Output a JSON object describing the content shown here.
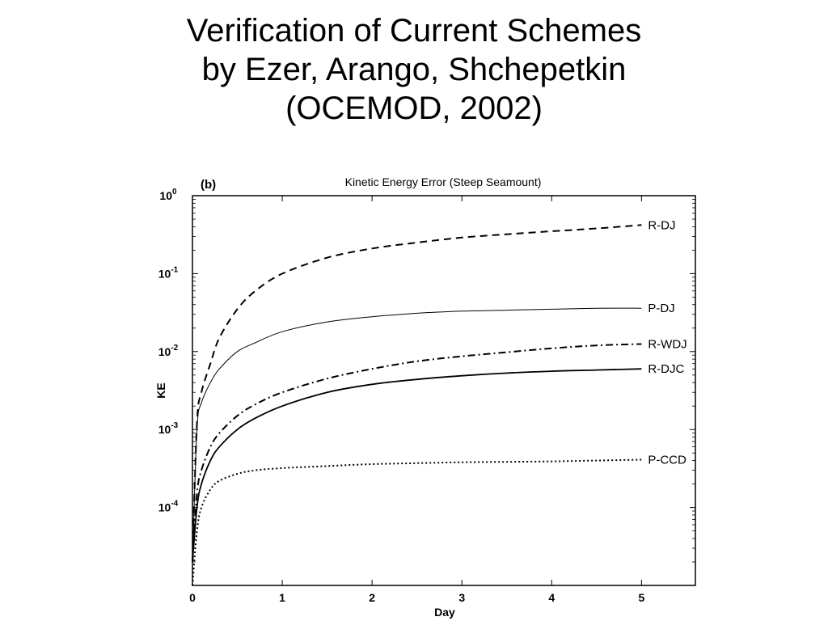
{
  "slide": {
    "title_lines": [
      "Verification of Current Schemes",
      "by Ezer, Arango, Shchepetkin",
      "(OCEMOD, 2002)"
    ]
  },
  "chart_data": {
    "type": "line",
    "panel_label": "(b)",
    "title": "Kinetic Energy Error (Steep Seamount)",
    "xlabel": "Day",
    "ylabel": "KE",
    "xlim": [
      0,
      5.6
    ],
    "ylim": [
      1e-05,
      1
    ],
    "yscale": "log",
    "x_ticks": [
      0,
      1,
      2,
      3,
      4,
      5
    ],
    "y_ticks": [
      {
        "value": 1,
        "base": "10",
        "exp": "0"
      },
      {
        "value": 0.1,
        "base": "10",
        "exp": "-1"
      },
      {
        "value": 0.01,
        "base": "10",
        "exp": "-2"
      },
      {
        "value": 0.001,
        "base": "10",
        "exp": "-3"
      },
      {
        "value": 0.0001,
        "base": "10",
        "exp": "-4"
      }
    ],
    "grid": false,
    "legend": "inline labels at right end of each curve",
    "series": [
      {
        "name": "R-DJ",
        "style": "dashed",
        "x": [
          0,
          0.05,
          0.1,
          0.2,
          0.3,
          0.5,
          0.7,
          1.0,
          1.5,
          2.0,
          2.5,
          3.0,
          3.5,
          4.0,
          4.5,
          5.0
        ],
        "y": [
          2e-05,
          0.0012,
          0.003,
          0.007,
          0.015,
          0.035,
          0.06,
          0.1,
          0.16,
          0.21,
          0.25,
          0.29,
          0.32,
          0.35,
          0.38,
          0.42
        ]
      },
      {
        "name": "P-DJ",
        "style": "solid-thin",
        "x": [
          0,
          0.05,
          0.1,
          0.2,
          0.3,
          0.5,
          0.7,
          1.0,
          1.5,
          2.0,
          2.5,
          3.0,
          3.5,
          4.0,
          4.5,
          5.0
        ],
        "y": [
          2e-05,
          0.001,
          0.0022,
          0.004,
          0.006,
          0.01,
          0.013,
          0.018,
          0.024,
          0.028,
          0.031,
          0.033,
          0.034,
          0.035,
          0.036,
          0.036
        ]
      },
      {
        "name": "R-WDJ",
        "style": "dashdot",
        "x": [
          0,
          0.05,
          0.1,
          0.2,
          0.3,
          0.5,
          0.7,
          1.0,
          1.5,
          2.0,
          2.5,
          3.0,
          3.5,
          4.0,
          4.5,
          5.0
        ],
        "y": [
          2e-05,
          0.00015,
          0.0003,
          0.0006,
          0.0009,
          0.0015,
          0.0021,
          0.003,
          0.0045,
          0.006,
          0.0075,
          0.0087,
          0.0098,
          0.011,
          0.012,
          0.0125
        ]
      },
      {
        "name": "R-DJC",
        "style": "solid",
        "x": [
          0,
          0.05,
          0.1,
          0.2,
          0.3,
          0.5,
          0.7,
          1.0,
          1.5,
          2.0,
          2.5,
          3.0,
          3.5,
          4.0,
          4.5,
          5.0
        ],
        "y": [
          2e-05,
          0.0001,
          0.0002,
          0.0004,
          0.0006,
          0.001,
          0.0014,
          0.002,
          0.003,
          0.0038,
          0.0044,
          0.0049,
          0.0053,
          0.0056,
          0.0058,
          0.006
        ]
      },
      {
        "name": "P-CCD",
        "style": "dotted",
        "x": [
          0,
          0.05,
          0.1,
          0.2,
          0.3,
          0.5,
          0.7,
          1.0,
          1.5,
          2.0,
          2.5,
          3.0,
          3.5,
          4.0,
          4.5,
          5.0
        ],
        "y": [
          1e-05,
          5e-05,
          0.0001,
          0.00017,
          0.00022,
          0.00027,
          0.0003,
          0.00032,
          0.00034,
          0.00036,
          0.00037,
          0.00038,
          0.000385,
          0.00039,
          0.0004,
          0.00041
        ]
      }
    ]
  }
}
